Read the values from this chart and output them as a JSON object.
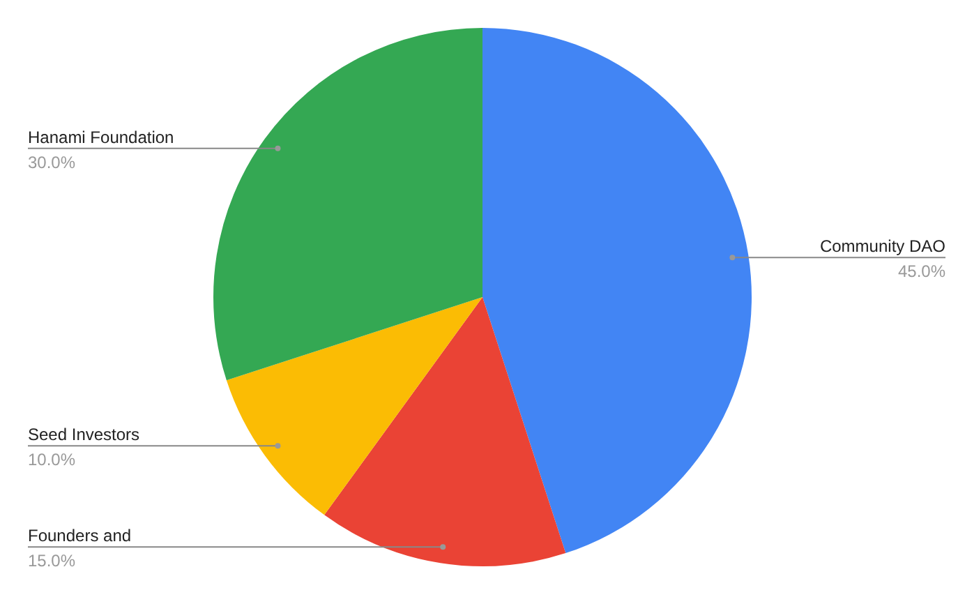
{
  "chart_data": {
    "type": "pie",
    "categories": [
      "Community DAO",
      "Founders and",
      "Seed Investors",
      "Hanami Foundation"
    ],
    "values": [
      45,
      15,
      10,
      30
    ],
    "colors": [
      "#4285f4",
      "#ea4335",
      "#fbbc04",
      "#34a853"
    ],
    "value_labels": [
      "45.0%",
      "15.0%",
      "10.0%",
      "30.0%"
    ],
    "legend": false
  }
}
